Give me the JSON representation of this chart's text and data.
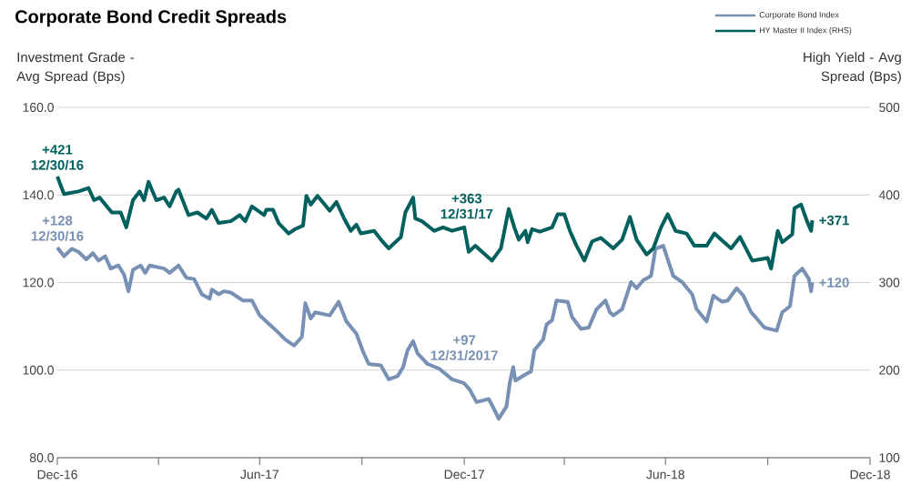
{
  "chart_data": {
    "type": "line",
    "title": "Corporate Bond Credit Spreads",
    "ylabel": "Investment Grade - Avg Spread (Bps)",
    "y2label": "High Yield - Avg Spread (Bps)",
    "xlim": [
      "2016-12-30",
      "2018-12-31"
    ],
    "xticks": [
      {
        "value": "2016-12-30",
        "label": "Dec-16"
      },
      {
        "value": "2017-03-31",
        "label": null
      },
      {
        "value": "2017-06-30",
        "label": "Jun-17"
      },
      {
        "value": "2017-09-30",
        "label": null
      },
      {
        "value": "2017-12-31",
        "label": "Dec-17"
      },
      {
        "value": "2018-03-31",
        "label": null
      },
      {
        "value": "2018-06-30",
        "label": "Jun-18"
      },
      {
        "value": "2018-09-30",
        "label": null
      },
      {
        "value": "2018-12-31",
        "label": "Dec-18"
      }
    ],
    "ylim": [
      80,
      160
    ],
    "yticks": [
      {
        "value": 80,
        "label": "80.0"
      },
      {
        "value": 100,
        "label": "100.0"
      },
      {
        "value": 120,
        "label": "120.0"
      },
      {
        "value": 140,
        "label": "140.0"
      },
      {
        "value": 160,
        "label": "160.0"
      }
    ],
    "y2lim": [
      100,
      500
    ],
    "y2ticks": [
      100,
      200,
      300,
      400,
      500
    ],
    "grid": "y",
    "legend": "top right",
    "series": [
      {
        "name": "Corporate Bond Index",
        "color": "#7890b3",
        "x": [
          "2016-12-30",
          "2017-01-05",
          "2017-01-12",
          "2017-01-18",
          "2017-01-25",
          "2017-01-31",
          "2017-02-05",
          "2017-02-11",
          "2017-02-16",
          "2017-02-23",
          "2017-02-28",
          "2017-03-04",
          "2017-03-08",
          "2017-03-15",
          "2017-03-19",
          "2017-03-23",
          "2017-04-05",
          "2017-04-10",
          "2017-04-18",
          "2017-04-25",
          "2017-05-02",
          "2017-05-09",
          "2017-05-16",
          "2017-05-18",
          "2017-05-24",
          "2017-05-29",
          "2017-06-04",
          "2017-06-15",
          "2017-06-23",
          "2017-06-30",
          "2017-07-09",
          "2017-07-15",
          "2017-07-23",
          "2017-07-31",
          "2017-08-07",
          "2017-08-10",
          "2017-08-15",
          "2017-08-19",
          "2017-09-01",
          "2017-09-09",
          "2017-09-16",
          "2017-09-25",
          "2017-10-01",
          "2017-10-06",
          "2017-10-17",
          "2017-10-24",
          "2017-11-01",
          "2017-11-06",
          "2017-11-10",
          "2017-11-15",
          "2017-11-19",
          "2017-11-28",
          "2017-12-08",
          "2017-12-20",
          "2017-12-31",
          "2018-01-05",
          "2018-01-11",
          "2018-01-22",
          "2018-01-27",
          "2018-01-31",
          "2018-02-07",
          "2018-02-10",
          "2018-02-13",
          "2018-02-15",
          "2018-02-24",
          "2018-03-01",
          "2018-03-04",
          "2018-03-12",
          "2018-03-15",
          "2018-03-20",
          "2018-03-24",
          "2018-04-03",
          "2018-04-07",
          "2018-04-15",
          "2018-04-22",
          "2018-04-29",
          "2018-05-07",
          "2018-05-11",
          "2018-05-14",
          "2018-05-22",
          "2018-05-30",
          "2018-06-04",
          "2018-06-10",
          "2018-06-17",
          "2018-06-21",
          "2018-06-28",
          "2018-07-07",
          "2018-07-15",
          "2018-07-24",
          "2018-07-28",
          "2018-08-06",
          "2018-08-12",
          "2018-08-20",
          "2018-08-25",
          "2018-09-02",
          "2018-09-08",
          "2018-09-15",
          "2018-09-20",
          "2018-09-27",
          "2018-10-08",
          "2018-10-13",
          "2018-10-20",
          "2018-10-24",
          "2018-10-31",
          "2018-11-06",
          "2018-11-08",
          "2018-11-09"
        ],
        "values": [
          128,
          126,
          127.7,
          127,
          125.3,
          126.7,
          125,
          126,
          123.2,
          123.9,
          121.8,
          118,
          122.9,
          123.9,
          122.2,
          123.9,
          123.2,
          122.2,
          123.9,
          121.1,
          120.8,
          117.3,
          116.3,
          118.4,
          117.3,
          118,
          117.7,
          115.9,
          115.9,
          112.5,
          110.4,
          109,
          107,
          105.6,
          107.6,
          115.3,
          111.8,
          113.2,
          112.5,
          115.6,
          111.1,
          108.3,
          104.2,
          101.4,
          101.1,
          97.9,
          98.6,
          100.7,
          104.5,
          106.6,
          103.8,
          101.4,
          100.4,
          97.9,
          97,
          95.5,
          92.7,
          93.4,
          91,
          88.9,
          91.7,
          97.2,
          100.7,
          97.6,
          99,
          99.7,
          104.5,
          107,
          110.4,
          111.4,
          115.9,
          115.6,
          112.1,
          109.4,
          109.7,
          113.9,
          115.9,
          113.2,
          112.5,
          113.9,
          120.1,
          118.7,
          120.5,
          121.5,
          127.7,
          128.4,
          121.5,
          120.1,
          117.3,
          113.9,
          111.1,
          117,
          115.6,
          115.9,
          118.7,
          117,
          113.2,
          111.8,
          109.7,
          109,
          113.2,
          114.6,
          121.5,
          123.2,
          120.8,
          118,
          120
        ]
      },
      {
        "name": "HY Master II Index (RHS)",
        "color": "#00605e",
        "axis": "y2",
        "x": [
          "2016-12-30",
          "2017-01-05",
          "2017-01-18",
          "2017-01-27",
          "2017-02-01",
          "2017-02-06",
          "2017-02-17",
          "2017-02-25",
          "2017-03-02",
          "2017-03-08",
          "2017-03-14",
          "2017-03-18",
          "2017-03-22",
          "2017-03-29",
          "2017-04-05",
          "2017-04-10",
          "2017-04-16",
          "2017-04-18",
          "2017-04-27",
          "2017-05-05",
          "2017-05-13",
          "2017-05-18",
          "2017-05-24",
          "2017-06-04",
          "2017-06-12",
          "2017-06-17",
          "2017-06-23",
          "2017-07-04",
          "2017-07-06",
          "2017-07-12",
          "2017-07-17",
          "2017-07-26",
          "2017-08-01",
          "2017-08-08",
          "2017-08-11",
          "2017-08-15",
          "2017-08-21",
          "2017-09-01",
          "2017-09-07",
          "2017-09-14",
          "2017-09-20",
          "2017-09-25",
          "2017-09-29",
          "2017-10-11",
          "2017-10-17",
          "2017-10-24",
          "2017-11-04",
          "2017-11-08",
          "2017-11-15",
          "2017-11-17",
          "2017-11-23",
          "2017-12-04",
          "2017-12-12",
          "2017-12-20",
          "2017-12-31",
          "2018-01-04",
          "2018-01-10",
          "2018-01-16",
          "2018-01-25",
          "2018-02-02",
          "2018-02-09",
          "2018-02-14",
          "2018-02-18",
          "2018-02-24",
          "2018-02-26",
          "2018-03-02",
          "2018-03-09",
          "2018-03-20",
          "2018-03-25",
          "2018-03-31",
          "2018-04-05",
          "2018-04-11",
          "2018-04-18",
          "2018-04-25",
          "2018-05-03",
          "2018-05-14",
          "2018-05-22",
          "2018-05-29",
          "2018-06-04",
          "2018-06-13",
          "2018-06-19",
          "2018-06-26",
          "2018-07-02",
          "2018-07-09",
          "2018-07-19",
          "2018-07-26",
          "2018-08-06",
          "2018-08-13",
          "2018-08-19",
          "2018-08-28",
          "2018-09-05",
          "2018-09-16",
          "2018-09-30",
          "2018-10-03",
          "2018-10-09",
          "2018-10-13",
          "2018-10-22",
          "2018-10-24",
          "2018-10-30",
          "2018-11-04",
          "2018-11-08",
          "2018-11-09"
        ],
        "values": [
          421,
          401,
          404,
          408,
          394,
          397,
          380,
          380,
          363,
          394,
          404,
          394,
          415,
          394,
          397,
          387,
          404,
          406,
          377,
          380,
          373,
          383,
          368,
          370,
          377,
          370,
          387,
          377,
          383,
          383,
          368,
          356,
          361,
          365,
          399,
          389,
          399,
          382,
          392,
          373,
          359,
          366,
          356,
          359,
          349,
          339,
          352,
          380,
          397,
          373,
          370,
          359,
          363,
          359,
          363,
          335,
          342,
          335,
          325,
          339,
          384,
          363,
          349,
          359,
          346,
          361,
          358,
          363,
          378,
          378,
          359,
          342,
          325,
          347,
          351,
          339,
          349,
          375,
          349,
          332,
          339,
          363,
          378,
          359,
          356,
          342,
          342,
          356,
          349,
          339,
          352,
          325,
          328,
          316,
          359,
          346,
          355,
          385,
          389,
          371,
          359,
          371
        ]
      }
    ],
    "annotations": [
      "+421 12/30/16",
      {
        "text": "+128 12/30/16",
        "x": "2016-12-30",
        "y": 128
      },
      "+363 12/31/17",
      {
        "text": "+97 12/31/2017",
        "x": "2017-12-31",
        "y": 97
      },
      "+371",
      {
        "text": "+120",
        "x": "2018-11-09",
        "y": 120
      }
    ]
  }
}
